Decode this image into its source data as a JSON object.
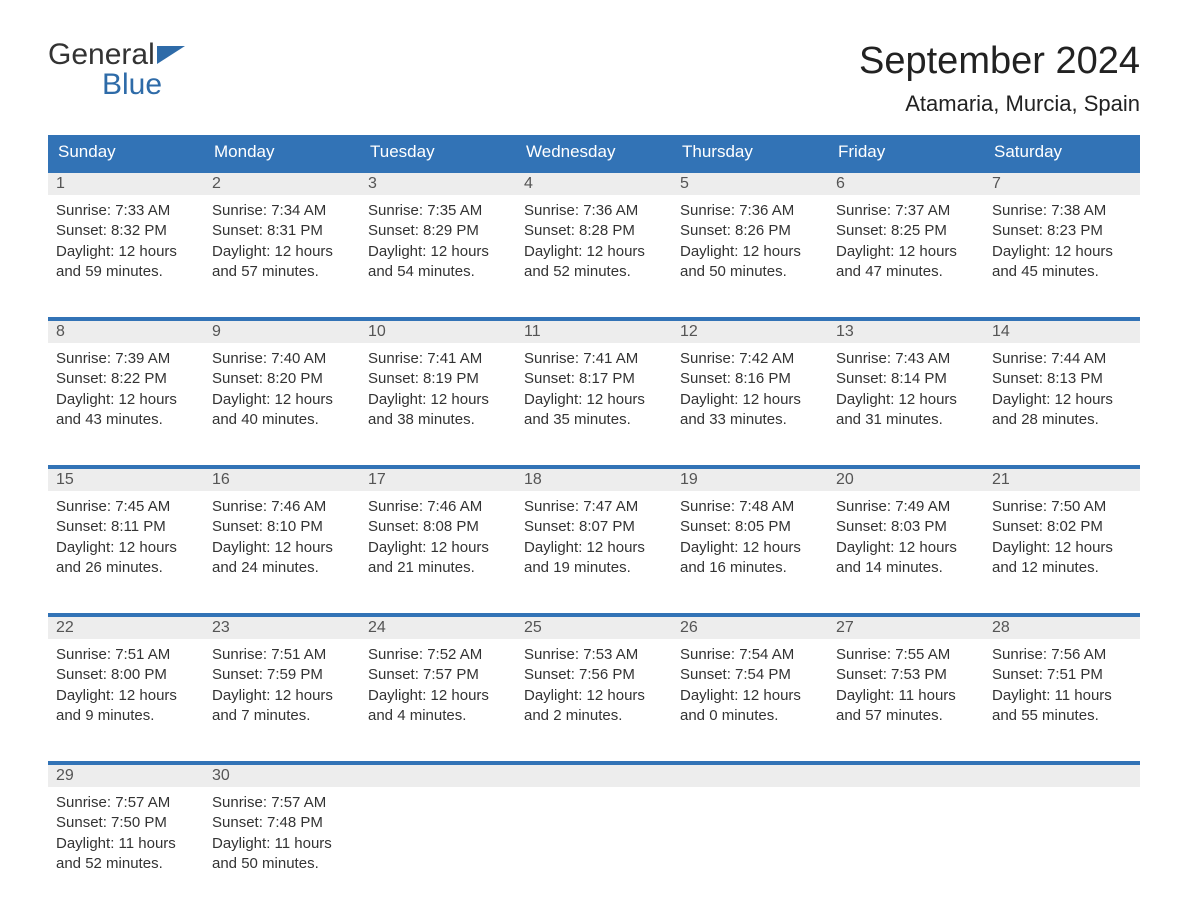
{
  "logo": {
    "line1": "General",
    "line2": "Blue"
  },
  "title": "September 2024",
  "location": "Atamaria, Murcia, Spain",
  "colors": {
    "brand_blue": "#3273b6",
    "header_gray": "#ededed",
    "text": "#333333",
    "background": "#ffffff"
  },
  "dayNames": [
    "Sunday",
    "Monday",
    "Tuesday",
    "Wednesday",
    "Thursday",
    "Friday",
    "Saturday"
  ],
  "weeks": [
    [
      {
        "num": "1",
        "sunrise": "Sunrise: 7:33 AM",
        "sunset": "Sunset: 8:32 PM",
        "day1": "Daylight: 12 hours",
        "day2": "and 59 minutes."
      },
      {
        "num": "2",
        "sunrise": "Sunrise: 7:34 AM",
        "sunset": "Sunset: 8:31 PM",
        "day1": "Daylight: 12 hours",
        "day2": "and 57 minutes."
      },
      {
        "num": "3",
        "sunrise": "Sunrise: 7:35 AM",
        "sunset": "Sunset: 8:29 PM",
        "day1": "Daylight: 12 hours",
        "day2": "and 54 minutes."
      },
      {
        "num": "4",
        "sunrise": "Sunrise: 7:36 AM",
        "sunset": "Sunset: 8:28 PM",
        "day1": "Daylight: 12 hours",
        "day2": "and 52 minutes."
      },
      {
        "num": "5",
        "sunrise": "Sunrise: 7:36 AM",
        "sunset": "Sunset: 8:26 PM",
        "day1": "Daylight: 12 hours",
        "day2": "and 50 minutes."
      },
      {
        "num": "6",
        "sunrise": "Sunrise: 7:37 AM",
        "sunset": "Sunset: 8:25 PM",
        "day1": "Daylight: 12 hours",
        "day2": "and 47 minutes."
      },
      {
        "num": "7",
        "sunrise": "Sunrise: 7:38 AM",
        "sunset": "Sunset: 8:23 PM",
        "day1": "Daylight: 12 hours",
        "day2": "and 45 minutes."
      }
    ],
    [
      {
        "num": "8",
        "sunrise": "Sunrise: 7:39 AM",
        "sunset": "Sunset: 8:22 PM",
        "day1": "Daylight: 12 hours",
        "day2": "and 43 minutes."
      },
      {
        "num": "9",
        "sunrise": "Sunrise: 7:40 AM",
        "sunset": "Sunset: 8:20 PM",
        "day1": "Daylight: 12 hours",
        "day2": "and 40 minutes."
      },
      {
        "num": "10",
        "sunrise": "Sunrise: 7:41 AM",
        "sunset": "Sunset: 8:19 PM",
        "day1": "Daylight: 12 hours",
        "day2": "and 38 minutes."
      },
      {
        "num": "11",
        "sunrise": "Sunrise: 7:41 AM",
        "sunset": "Sunset: 8:17 PM",
        "day1": "Daylight: 12 hours",
        "day2": "and 35 minutes."
      },
      {
        "num": "12",
        "sunrise": "Sunrise: 7:42 AM",
        "sunset": "Sunset: 8:16 PM",
        "day1": "Daylight: 12 hours",
        "day2": "and 33 minutes."
      },
      {
        "num": "13",
        "sunrise": "Sunrise: 7:43 AM",
        "sunset": "Sunset: 8:14 PM",
        "day1": "Daylight: 12 hours",
        "day2": "and 31 minutes."
      },
      {
        "num": "14",
        "sunrise": "Sunrise: 7:44 AM",
        "sunset": "Sunset: 8:13 PM",
        "day1": "Daylight: 12 hours",
        "day2": "and 28 minutes."
      }
    ],
    [
      {
        "num": "15",
        "sunrise": "Sunrise: 7:45 AM",
        "sunset": "Sunset: 8:11 PM",
        "day1": "Daylight: 12 hours",
        "day2": "and 26 minutes."
      },
      {
        "num": "16",
        "sunrise": "Sunrise: 7:46 AM",
        "sunset": "Sunset: 8:10 PM",
        "day1": "Daylight: 12 hours",
        "day2": "and 24 minutes."
      },
      {
        "num": "17",
        "sunrise": "Sunrise: 7:46 AM",
        "sunset": "Sunset: 8:08 PM",
        "day1": "Daylight: 12 hours",
        "day2": "and 21 minutes."
      },
      {
        "num": "18",
        "sunrise": "Sunrise: 7:47 AM",
        "sunset": "Sunset: 8:07 PM",
        "day1": "Daylight: 12 hours",
        "day2": "and 19 minutes."
      },
      {
        "num": "19",
        "sunrise": "Sunrise: 7:48 AM",
        "sunset": "Sunset: 8:05 PM",
        "day1": "Daylight: 12 hours",
        "day2": "and 16 minutes."
      },
      {
        "num": "20",
        "sunrise": "Sunrise: 7:49 AM",
        "sunset": "Sunset: 8:03 PM",
        "day1": "Daylight: 12 hours",
        "day2": "and 14 minutes."
      },
      {
        "num": "21",
        "sunrise": "Sunrise: 7:50 AM",
        "sunset": "Sunset: 8:02 PM",
        "day1": "Daylight: 12 hours",
        "day2": "and 12 minutes."
      }
    ],
    [
      {
        "num": "22",
        "sunrise": "Sunrise: 7:51 AM",
        "sunset": "Sunset: 8:00 PM",
        "day1": "Daylight: 12 hours",
        "day2": "and 9 minutes."
      },
      {
        "num": "23",
        "sunrise": "Sunrise: 7:51 AM",
        "sunset": "Sunset: 7:59 PM",
        "day1": "Daylight: 12 hours",
        "day2": "and 7 minutes."
      },
      {
        "num": "24",
        "sunrise": "Sunrise: 7:52 AM",
        "sunset": "Sunset: 7:57 PM",
        "day1": "Daylight: 12 hours",
        "day2": "and 4 minutes."
      },
      {
        "num": "25",
        "sunrise": "Sunrise: 7:53 AM",
        "sunset": "Sunset: 7:56 PM",
        "day1": "Daylight: 12 hours",
        "day2": "and 2 minutes."
      },
      {
        "num": "26",
        "sunrise": "Sunrise: 7:54 AM",
        "sunset": "Sunset: 7:54 PM",
        "day1": "Daylight: 12 hours",
        "day2": "and 0 minutes."
      },
      {
        "num": "27",
        "sunrise": "Sunrise: 7:55 AM",
        "sunset": "Sunset: 7:53 PM",
        "day1": "Daylight: 11 hours",
        "day2": "and 57 minutes."
      },
      {
        "num": "28",
        "sunrise": "Sunrise: 7:56 AM",
        "sunset": "Sunset: 7:51 PM",
        "day1": "Daylight: 11 hours",
        "day2": "and 55 minutes."
      }
    ],
    [
      {
        "num": "29",
        "sunrise": "Sunrise: 7:57 AM",
        "sunset": "Sunset: 7:50 PM",
        "day1": "Daylight: 11 hours",
        "day2": "and 52 minutes."
      },
      {
        "num": "30",
        "sunrise": "Sunrise: 7:57 AM",
        "sunset": "Sunset: 7:48 PM",
        "day1": "Daylight: 11 hours",
        "day2": "and 50 minutes."
      },
      null,
      null,
      null,
      null,
      null
    ]
  ]
}
